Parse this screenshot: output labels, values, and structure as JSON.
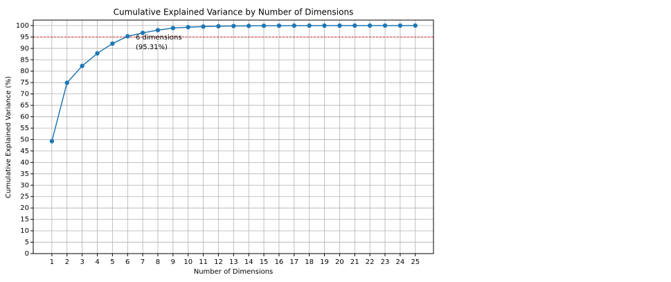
{
  "chart_data": {
    "type": "line",
    "title": "Cumulative Explained Variance by Number of Dimensions",
    "xlabel": "Number of Dimensions",
    "ylabel": "Cumulative Explained Variance (%)",
    "x": [
      1,
      2,
      3,
      4,
      5,
      6,
      7,
      8,
      9,
      10,
      11,
      12,
      13,
      14,
      15,
      16,
      17,
      18,
      19,
      20,
      21,
      22,
      23,
      24,
      25
    ],
    "series": [
      {
        "color": "#1f77b4",
        "values": [
          49.3,
          74.9,
          82.3,
          87.8,
          92.1,
          95.31,
          96.8,
          98.0,
          98.9,
          99.3,
          99.55,
          99.7,
          99.8,
          99.87,
          99.92,
          99.95,
          99.97,
          99.98,
          99.99,
          99.99,
          100,
          100,
          100,
          100,
          100
        ]
      }
    ],
    "threshold": 95,
    "threshold_color": "#d62728",
    "annotation": [
      "6 dimensions",
      "(95.31%)"
    ],
    "annotation_color": "#7000d0",
    "xlim": [
      -0.23,
      26.2
    ],
    "ylim": [
      0,
      102.4
    ],
    "xticks": [
      1,
      2,
      3,
      4,
      5,
      6,
      7,
      8,
      9,
      10,
      11,
      12,
      13,
      14,
      15,
      16,
      17,
      18,
      19,
      20,
      21,
      22,
      23,
      24,
      25
    ],
    "yticks": [
      0,
      5,
      10,
      15,
      20,
      25,
      30,
      35,
      40,
      45,
      50,
      55,
      60,
      65,
      70,
      75,
      80,
      85,
      90,
      95,
      100
    ],
    "grid": true
  }
}
